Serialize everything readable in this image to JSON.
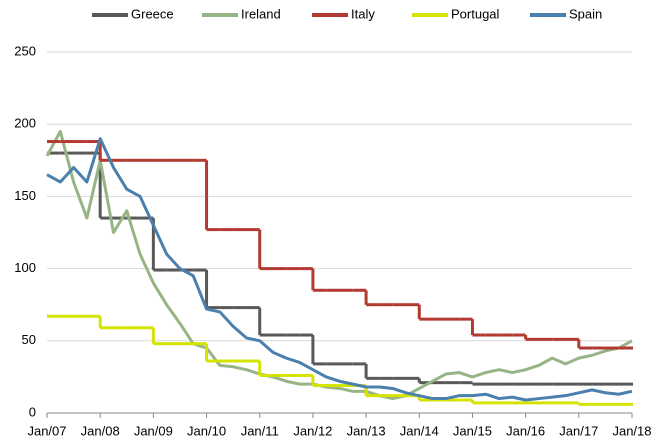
{
  "chart_data": {
    "type": "line",
    "x": [
      2007,
      2007.25,
      2007.5,
      2007.75,
      2008,
      2008.25,
      2008.5,
      2008.75,
      2009,
      2009.25,
      2009.5,
      2009.75,
      2010,
      2010.25,
      2010.5,
      2010.75,
      2011,
      2011.25,
      2011.5,
      2011.75,
      2012,
      2012.25,
      2012.5,
      2012.75,
      2013,
      2013.25,
      2013.5,
      2013.75,
      2014,
      2014.25,
      2014.5,
      2014.75,
      2015,
      2015.25,
      2015.5,
      2015.75,
      2016,
      2016.25,
      2016.5,
      2016.75,
      2017,
      2017.25,
      2017.5,
      2017.75,
      2018
    ],
    "series": [
      {
        "name": "Greece",
        "color": "#595959",
        "step": true,
        "values": [
          180,
          180,
          180,
          180,
          135,
          135,
          135,
          135,
          99,
          99,
          99,
          99,
          73,
          73,
          73,
          73,
          54,
          54,
          54,
          54,
          34,
          34,
          34,
          34,
          24,
          24,
          24,
          24,
          21,
          21,
          21,
          21,
          20,
          20,
          20,
          20,
          20,
          20,
          20,
          20,
          20,
          20,
          20,
          20,
          20
        ]
      },
      {
        "name": "Ireland",
        "color": "#97b484",
        "step": false,
        "values": [
          178,
          195,
          160,
          135,
          175,
          125,
          140,
          110,
          90,
          75,
          62,
          48,
          45,
          33,
          32,
          30,
          27,
          25,
          22,
          20,
          20,
          18,
          17,
          15,
          15,
          12,
          10,
          12,
          17,
          22,
          27,
          28,
          25,
          28,
          30,
          28,
          30,
          33,
          38,
          34,
          38,
          40,
          43,
          45,
          50
        ]
      },
      {
        "name": "Italy",
        "color": "#b33a30",
        "step": true,
        "values": [
          188,
          188,
          188,
          188,
          175,
          175,
          175,
          175,
          175,
          175,
          175,
          175,
          127,
          127,
          127,
          127,
          100,
          100,
          100,
          100,
          85,
          85,
          85,
          85,
          75,
          75,
          75,
          75,
          65,
          65,
          65,
          65,
          54,
          54,
          54,
          54,
          51,
          51,
          51,
          51,
          45,
          45,
          45,
          45,
          45
        ]
      },
      {
        "name": "Portugal",
        "color": "#d4e300",
        "step": true,
        "values": [
          67,
          67,
          67,
          67,
          59,
          59,
          59,
          59,
          48,
          48,
          48,
          48,
          36,
          36,
          36,
          36,
          26,
          26,
          26,
          26,
          19,
          19,
          19,
          19,
          12,
          12,
          12,
          12,
          9,
          9,
          9,
          9,
          7,
          7,
          7,
          7,
          7,
          7,
          7,
          7,
          6,
          6,
          6,
          6,
          6
        ]
      },
      {
        "name": "Spain",
        "color": "#4a7fae",
        "step": false,
        "values": [
          165,
          160,
          170,
          160,
          190,
          170,
          155,
          150,
          130,
          110,
          100,
          95,
          72,
          70,
          60,
          52,
          50,
          42,
          38,
          35,
          30,
          25,
          22,
          20,
          18,
          18,
          17,
          14,
          12,
          10,
          10,
          12,
          12,
          13,
          10,
          11,
          9,
          10,
          11,
          12,
          14,
          16,
          14,
          13,
          15
        ]
      }
    ],
    "xlim": [
      2007,
      2018
    ],
    "xticks": [
      {
        "value": 2007,
        "label": "Jan/07"
      },
      {
        "value": 2008,
        "label": "Jan/08"
      },
      {
        "value": 2009,
        "label": "Jan/09"
      },
      {
        "value": 2010,
        "label": "Jan/10"
      },
      {
        "value": 2011,
        "label": "Jan/11"
      },
      {
        "value": 2012,
        "label": "Jan/12"
      },
      {
        "value": 2013,
        "label": "Jan/13"
      },
      {
        "value": 2014,
        "label": "Jan/14"
      },
      {
        "value": 2015,
        "label": "Jan/15"
      },
      {
        "value": 2016,
        "label": "Jan/16"
      },
      {
        "value": 2017,
        "label": "Jan/17"
      },
      {
        "value": 2018,
        "label": "Jan/18"
      }
    ],
    "ylim": [
      0,
      250
    ],
    "yticks": [
      0,
      50,
      100,
      150,
      200,
      250
    ],
    "grid": true,
    "legend": "top"
  }
}
